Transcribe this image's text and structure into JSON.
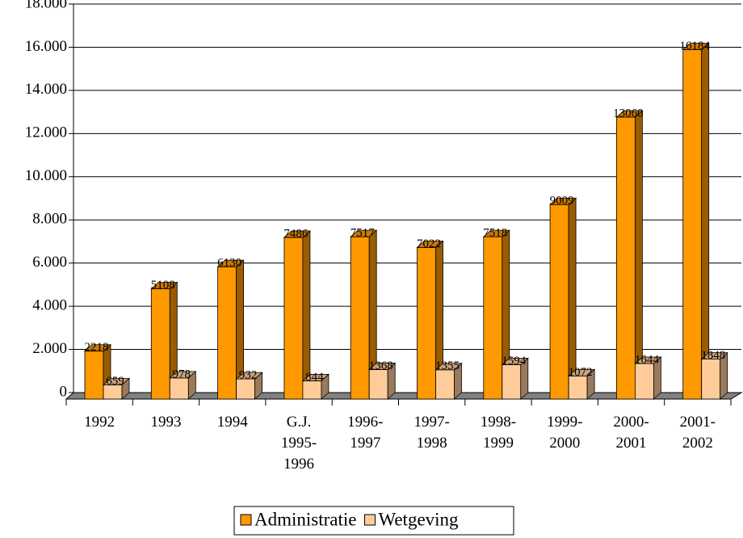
{
  "chart_data": {
    "type": "bar3d",
    "categories": [
      "1992",
      "1993",
      "1994",
      "G.J. 1995-1996",
      "1996-1997",
      "1997-1998",
      "1998-1999",
      "1999-2000",
      "2000-2001",
      "2001-2002"
    ],
    "series": [
      {
        "name": "Administratie",
        "color": "#ff9900",
        "values": [
          2218,
          5108,
          6130,
          7486,
          7517,
          7022,
          7518,
          9009,
          13060,
          16184
        ]
      },
      {
        "name": "Wetgeving",
        "color": "#ffcc99",
        "values": [
          659,
          978,
          932,
          844,
          1368,
          1355,
          1594,
          1072,
          1644,
          1848
        ]
      }
    ],
    "ylim": [
      0,
      18000
    ],
    "yticks": [
      0,
      {
        "value": 2000,
        "label": "2.000"
      },
      {
        "value": 4000,
        "label": "4.000"
      },
      {
        "value": 6000,
        "label": "6.000"
      },
      {
        "value": 8000,
        "label": "8.000"
      },
      {
        "value": 10000,
        "label": "10.000"
      },
      {
        "value": 12000,
        "label": "12.000"
      },
      {
        "value": 14000,
        "label": "14.000"
      },
      {
        "value": 16000,
        "label": "16.000"
      },
      {
        "value": 18000,
        "label": "18.000"
      }
    ],
    "grid": true,
    "legend": "bottom"
  }
}
